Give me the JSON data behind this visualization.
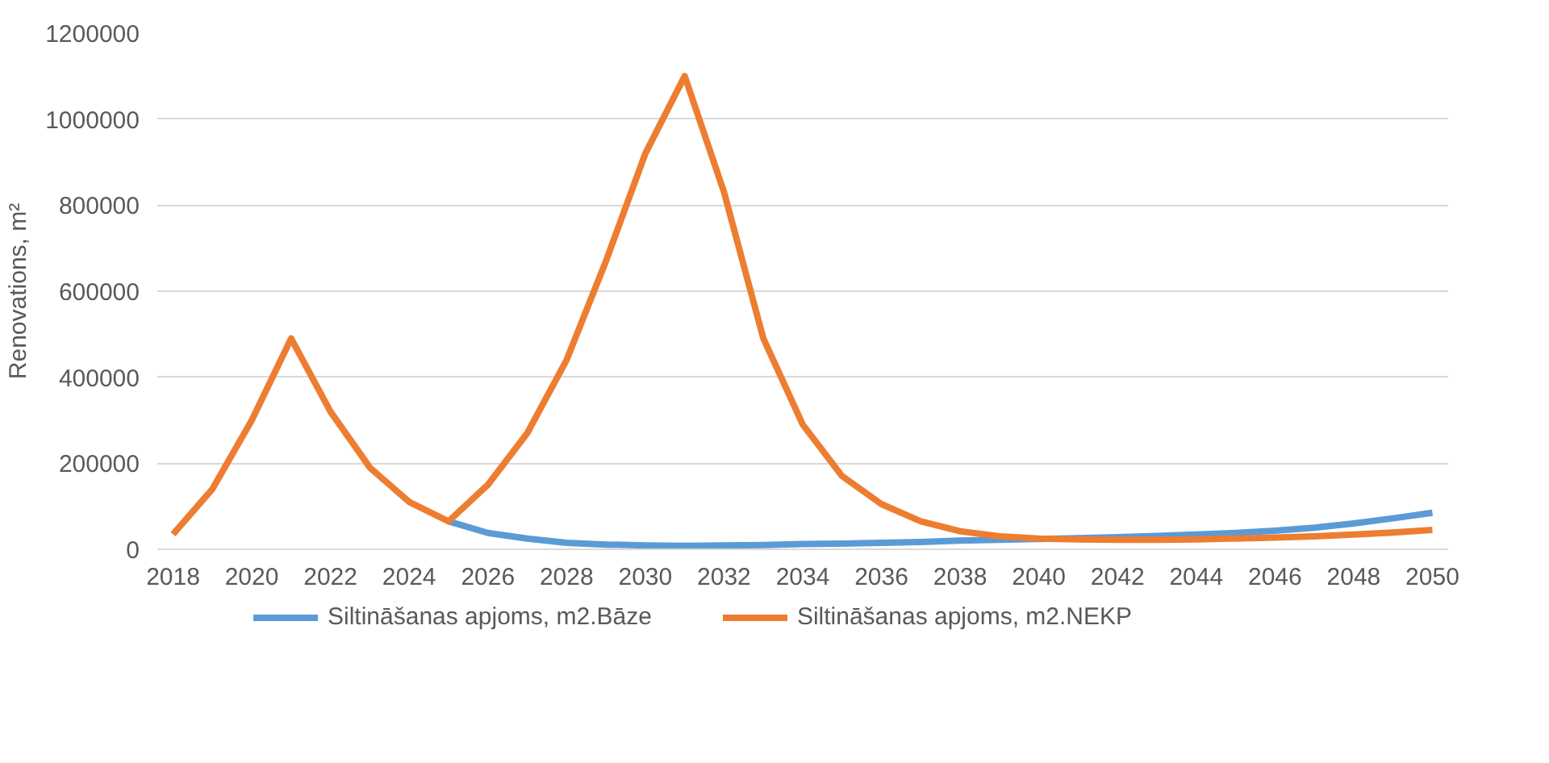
{
  "chart_data": {
    "type": "line",
    "ylabel": "Renovations, m²",
    "x": [
      2018,
      2019,
      2020,
      2021,
      2022,
      2023,
      2024,
      2025,
      2026,
      2027,
      2028,
      2029,
      2030,
      2031,
      2032,
      2033,
      2034,
      2035,
      2036,
      2037,
      2038,
      2039,
      2040,
      2041,
      2042,
      2043,
      2044,
      2045,
      2046,
      2047,
      2048,
      2049,
      2050
    ],
    "series": [
      {
        "name": "Siltināšanas apjoms, m2.Bāze",
        "color": "#5b9bd5",
        "values": [
          null,
          null,
          null,
          null,
          null,
          null,
          null,
          65000,
          38000,
          25000,
          15000,
          11000,
          9000,
          8000,
          9000,
          10000,
          12000,
          13000,
          15000,
          17000,
          20000,
          22000,
          24000,
          26000,
          28000,
          31000,
          34000,
          38000,
          43000,
          50000,
          60000,
          72000,
          85000
        ]
      },
      {
        "name": "Siltināšanas apjoms, m2.NEKP",
        "color": "#ed7d31",
        "values": [
          35000,
          140000,
          300000,
          490000,
          320000,
          190000,
          110000,
          65000,
          150000,
          270000,
          440000,
          670000,
          920000,
          1100000,
          830000,
          490000,
          290000,
          170000,
          105000,
          65000,
          42000,
          30000,
          25000,
          23000,
          22000,
          22000,
          23000,
          25000,
          27000,
          30000,
          34000,
          39000,
          45000
        ]
      }
    ],
    "xlim": [
      2017.6,
      2050.4
    ],
    "xticks": [
      2018,
      2020,
      2022,
      2024,
      2026,
      2028,
      2030,
      2032,
      2034,
      2036,
      2038,
      2040,
      2042,
      2044,
      2046,
      2048,
      2050
    ],
    "ylim": [
      0,
      1200000
    ],
    "yticks": [
      0,
      200000,
      400000,
      600000,
      800000,
      1000000,
      1200000
    ],
    "grid": "y",
    "legend": "bottom",
    "marker": "none",
    "line_style": "solid"
  }
}
